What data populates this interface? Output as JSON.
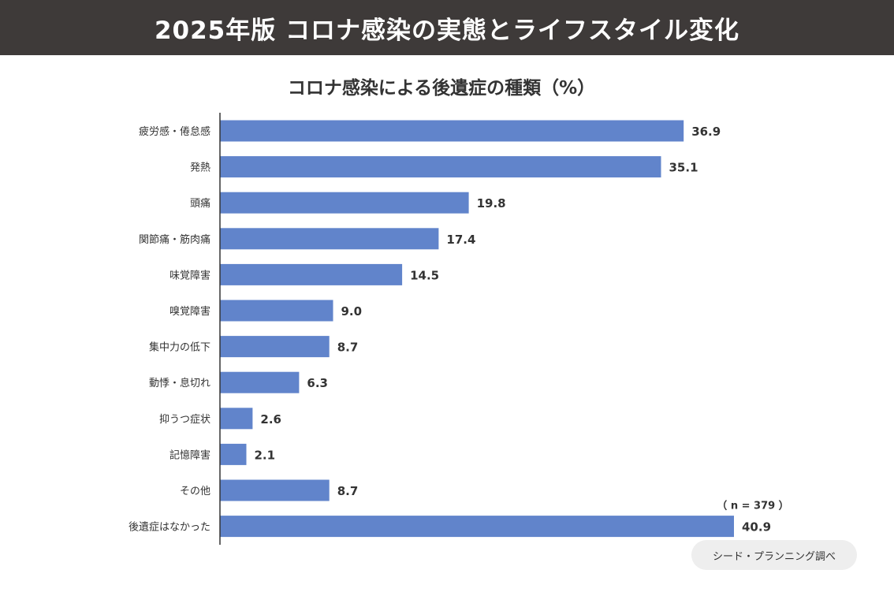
{
  "header": {
    "title": "2025年版 コロナ感染の実態とライフスタイル変化"
  },
  "footer": {
    "source": "シード・プランニング調べ"
  },
  "colors": {
    "header_bg": "#3e3a39",
    "bar": "#6184cb",
    "axis": "#333333"
  },
  "chart_data": {
    "type": "bar",
    "orientation": "horizontal",
    "title": "コロナ感染による後遺症の種類（%）",
    "categories": [
      "疲労感・倦怠感",
      "発熱",
      "頭痛",
      "関節痛・筋肉痛",
      "味覚障害",
      "嗅覚障害",
      "集中力の低下",
      "動悸・息切れ",
      "抑うつ症状",
      "記憶障害",
      "その他",
      "後遺症はなかった"
    ],
    "values": [
      36.9,
      35.1,
      19.8,
      17.4,
      14.5,
      9.0,
      8.7,
      6.3,
      2.6,
      2.1,
      8.7,
      40.9
    ],
    "value_labels": [
      "36.9",
      "35.1",
      "19.8",
      "17.4",
      "14.5",
      "9.0",
      "8.7",
      "6.3",
      "2.6",
      "2.1",
      "8.7",
      "40.9"
    ],
    "annotation": "（ n = 379 ）",
    "xlabel": "",
    "ylabel": "",
    "xlim": [
      0,
      40.9
    ],
    "grid": false,
    "legend": "none"
  }
}
